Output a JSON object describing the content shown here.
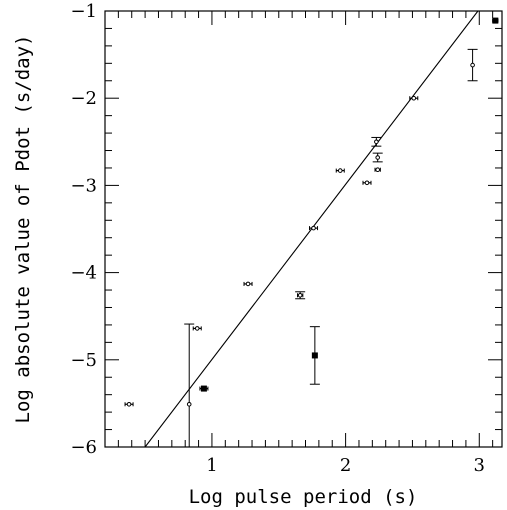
{
  "chart_data": {
    "type": "scatter",
    "xlabel": "Log pulse period (s)",
    "ylabel": "Log absolute value of Pdot (s/day)",
    "xlim": [
      0.2,
      3.17
    ],
    "ylim": [
      -6,
      -1
    ],
    "x_ticks": [
      1,
      2,
      3
    ],
    "x_tick_labels": [
      "1",
      "2",
      "3"
    ],
    "y_ticks": [
      -6,
      -5,
      -4,
      -3,
      -2,
      -1
    ],
    "y_tick_labels": [
      "−6",
      "−5",
      "−4",
      "−3",
      "−2",
      "−1"
    ],
    "grid": false,
    "fit_line": {
      "x": [
        0.5,
        2.99
      ],
      "y": [
        -6.0,
        -1.0
      ]
    },
    "points": [
      {
        "x": 0.38,
        "y": -5.51,
        "xerr": 0.03,
        "yerr": 0.0,
        "marker": "dot"
      },
      {
        "x": 0.83,
        "y": -5.51,
        "xerr": 0.0,
        "yerr": 0.92,
        "marker": "dot"
      },
      {
        "x": 0.89,
        "y": -4.64,
        "xerr": 0.03,
        "yerr": 0.0,
        "marker": "dot"
      },
      {
        "x": 0.94,
        "y": -5.33,
        "xerr": 0.03,
        "yerr": 0.0,
        "marker": "square"
      },
      {
        "x": 1.27,
        "y": -4.13,
        "xerr": 0.03,
        "yerr": 0.0,
        "marker": "dot"
      },
      {
        "x": 1.66,
        "y": -4.26,
        "xerr": 0.02,
        "yerr": 0.04,
        "marker": "dot"
      },
      {
        "x": 1.76,
        "y": -3.49,
        "xerr": 0.03,
        "yerr": 0.0,
        "marker": "dot"
      },
      {
        "x": 1.77,
        "y": -4.95,
        "xerr": 0.0,
        "yerr": 0.33,
        "marker": "square"
      },
      {
        "x": 1.96,
        "y": -2.83,
        "xerr": 0.03,
        "yerr": 0.0,
        "marker": "dot"
      },
      {
        "x": 2.16,
        "y": -2.97,
        "xerr": 0.03,
        "yerr": 0.0,
        "marker": "dot"
      },
      {
        "x": 2.23,
        "y": -2.5,
        "xerr": 0.0,
        "yerr": 0.05,
        "marker": "dot"
      },
      {
        "x": 2.24,
        "y": -2.68,
        "xerr": 0.0,
        "yerr": 0.05,
        "marker": "dot"
      },
      {
        "x": 2.24,
        "y": -2.82,
        "xerr": 0.02,
        "yerr": 0.0,
        "marker": "dot"
      },
      {
        "x": 2.51,
        "y": -2.0,
        "xerr": 0.03,
        "yerr": 0.0,
        "marker": "dot"
      },
      {
        "x": 2.95,
        "y": -1.62,
        "xerr": 0.0,
        "yerr": 0.18,
        "marker": "dot"
      },
      {
        "x": 3.12,
        "y": -1.11,
        "xerr": 0.02,
        "yerr": 0.0,
        "marker": "square"
      }
    ]
  }
}
